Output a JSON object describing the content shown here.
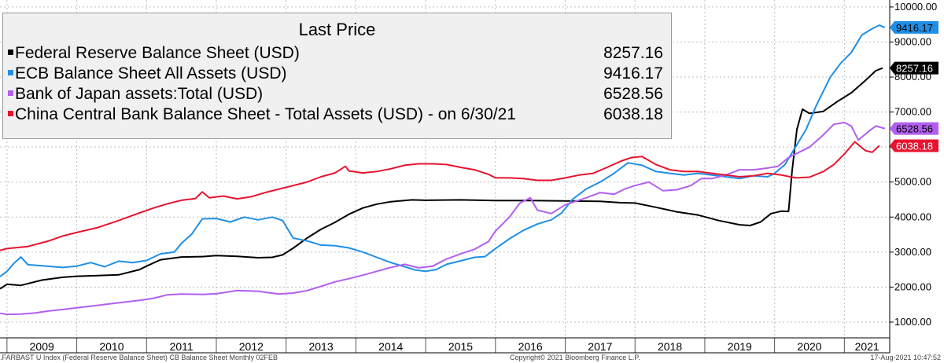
{
  "chart_data": {
    "type": "line",
    "title": "Last Price",
    "x_range": [
      2008.9,
      2021.65
    ],
    "ylim": [
      550,
      10200
    ],
    "y_ticks": [
      1000,
      2000,
      3000,
      4000,
      5000,
      6000,
      7000,
      8000,
      9000,
      10000
    ],
    "y_tick_labels": [
      "1000.00",
      "2000.00",
      "3000.00",
      "4000.00",
      "5000.00",
      "6000.00",
      "7000.00",
      "8000.00",
      "9000.00",
      "10000.00"
    ],
    "x_tick_labels": [
      "2009",
      "2010",
      "2011",
      "2012",
      "2013",
      "2014",
      "2015",
      "2016",
      "2017",
      "2018",
      "2019",
      "2020",
      "2021"
    ],
    "grid": true,
    "legend_position": "top-left",
    "series": [
      {
        "name": "Federal Reserve Balance Sheet (USD)",
        "last_value": "8257.16",
        "color": "#000000",
        "points": [
          [
            2008.9,
            1950
          ],
          [
            2009.0,
            2080
          ],
          [
            2009.2,
            2050
          ],
          [
            2009.5,
            2200
          ],
          [
            2009.8,
            2280
          ],
          [
            2010.0,
            2310
          ],
          [
            2010.3,
            2330
          ],
          [
            2010.6,
            2350
          ],
          [
            2010.9,
            2500
          ],
          [
            2011.0,
            2600
          ],
          [
            2011.2,
            2780
          ],
          [
            2011.5,
            2860
          ],
          [
            2011.8,
            2870
          ],
          [
            2012.0,
            2900
          ],
          [
            2012.3,
            2880
          ],
          [
            2012.6,
            2840
          ],
          [
            2012.8,
            2850
          ],
          [
            2012.95,
            2920
          ],
          [
            2013.1,
            3110
          ],
          [
            2013.3,
            3400
          ],
          [
            2013.5,
            3650
          ],
          [
            2013.7,
            3850
          ],
          [
            2013.9,
            4080
          ],
          [
            2014.1,
            4260
          ],
          [
            2014.3,
            4370
          ],
          [
            2014.5,
            4440
          ],
          [
            2014.8,
            4490
          ],
          [
            2015.0,
            4480
          ],
          [
            2015.5,
            4490
          ],
          [
            2016.0,
            4470
          ],
          [
            2016.5,
            4470
          ],
          [
            2017.0,
            4460
          ],
          [
            2017.5,
            4450
          ],
          [
            2017.8,
            4410
          ],
          [
            2018.0,
            4400
          ],
          [
            2018.3,
            4280
          ],
          [
            2018.6,
            4150
          ],
          [
            2018.9,
            4060
          ],
          [
            2019.2,
            3900
          ],
          [
            2019.5,
            3780
          ],
          [
            2019.65,
            3760
          ],
          [
            2019.8,
            3860
          ],
          [
            2019.95,
            4100
          ],
          [
            2020.1,
            4170
          ],
          [
            2020.2,
            4160
          ],
          [
            2020.25,
            5300
          ],
          [
            2020.32,
            6500
          ],
          [
            2020.4,
            7080
          ],
          [
            2020.5,
            6960
          ],
          [
            2020.7,
            7020
          ],
          [
            2020.9,
            7300
          ],
          [
            2021.1,
            7550
          ],
          [
            2021.3,
            7900
          ],
          [
            2021.45,
            8180
          ],
          [
            2021.55,
            8257.16
          ]
        ]
      },
      {
        "name": "ECB Balance Sheet All Assets (USD)",
        "last_value": "9416.17",
        "color": "#1f8fe6",
        "points": [
          [
            2008.9,
            2300
          ],
          [
            2009.0,
            2450
          ],
          [
            2009.1,
            2680
          ],
          [
            2009.2,
            2860
          ],
          [
            2009.3,
            2640
          ],
          [
            2009.5,
            2610
          ],
          [
            2009.8,
            2560
          ],
          [
            2010.0,
            2600
          ],
          [
            2010.2,
            2700
          ],
          [
            2010.4,
            2580
          ],
          [
            2010.6,
            2740
          ],
          [
            2010.8,
            2700
          ],
          [
            2011.0,
            2760
          ],
          [
            2011.2,
            2950
          ],
          [
            2011.4,
            3000
          ],
          [
            2011.5,
            3250
          ],
          [
            2011.65,
            3520
          ],
          [
            2011.8,
            3950
          ],
          [
            2012.0,
            3960
          ],
          [
            2012.2,
            3860
          ],
          [
            2012.4,
            4000
          ],
          [
            2012.6,
            3920
          ],
          [
            2012.8,
            4000
          ],
          [
            2012.95,
            3900
          ],
          [
            2013.1,
            3400
          ],
          [
            2013.3,
            3320
          ],
          [
            2013.5,
            3200
          ],
          [
            2013.7,
            3180
          ],
          [
            2013.9,
            3120
          ],
          [
            2014.1,
            3000
          ],
          [
            2014.3,
            2850
          ],
          [
            2014.5,
            2700
          ],
          [
            2014.7,
            2580
          ],
          [
            2014.85,
            2490
          ],
          [
            2015.0,
            2450
          ],
          [
            2015.15,
            2500
          ],
          [
            2015.3,
            2650
          ],
          [
            2015.5,
            2750
          ],
          [
            2015.7,
            2850
          ],
          [
            2015.85,
            2870
          ],
          [
            2016.0,
            3100
          ],
          [
            2016.2,
            3380
          ],
          [
            2016.4,
            3620
          ],
          [
            2016.6,
            3800
          ],
          [
            2016.8,
            3920
          ],
          [
            2016.95,
            4120
          ],
          [
            2017.1,
            4500
          ],
          [
            2017.3,
            4800
          ],
          [
            2017.5,
            5000
          ],
          [
            2017.7,
            5250
          ],
          [
            2017.9,
            5550
          ],
          [
            2018.1,
            5480
          ],
          [
            2018.3,
            5300
          ],
          [
            2018.5,
            5250
          ],
          [
            2018.7,
            5200
          ],
          [
            2018.9,
            5250
          ],
          [
            2019.1,
            5200
          ],
          [
            2019.3,
            5150
          ],
          [
            2019.5,
            5100
          ],
          [
            2019.7,
            5180
          ],
          [
            2019.9,
            5150
          ],
          [
            2020.0,
            5250
          ],
          [
            2020.15,
            5500
          ],
          [
            2020.3,
            6000
          ],
          [
            2020.45,
            6500
          ],
          [
            2020.6,
            7200
          ],
          [
            2020.8,
            8000
          ],
          [
            2020.95,
            8400
          ],
          [
            2021.1,
            8700
          ],
          [
            2021.25,
            9200
          ],
          [
            2021.4,
            9380
          ],
          [
            2021.5,
            9480
          ],
          [
            2021.58,
            9416.17
          ]
        ]
      },
      {
        "name": "Bank of Japan assets:Total (USD)",
        "last_value": "6528.56",
        "color": "#b25ff0",
        "points": [
          [
            2008.9,
            1250
          ],
          [
            2009.0,
            1220
          ],
          [
            2009.2,
            1230
          ],
          [
            2009.4,
            1260
          ],
          [
            2009.6,
            1320
          ],
          [
            2009.8,
            1360
          ],
          [
            2010.0,
            1410
          ],
          [
            2010.3,
            1480
          ],
          [
            2010.6,
            1550
          ],
          [
            2010.9,
            1620
          ],
          [
            2011.1,
            1680
          ],
          [
            2011.3,
            1780
          ],
          [
            2011.5,
            1800
          ],
          [
            2011.8,
            1790
          ],
          [
            2012.0,
            1810
          ],
          [
            2012.3,
            1900
          ],
          [
            2012.6,
            1880
          ],
          [
            2012.9,
            1800
          ],
          [
            2013.1,
            1830
          ],
          [
            2013.3,
            1900
          ],
          [
            2013.5,
            2020
          ],
          [
            2013.7,
            2150
          ],
          [
            2013.9,
            2240
          ],
          [
            2014.1,
            2340
          ],
          [
            2014.3,
            2450
          ],
          [
            2014.5,
            2560
          ],
          [
            2014.7,
            2650
          ],
          [
            2014.9,
            2550
          ],
          [
            2015.1,
            2600
          ],
          [
            2015.3,
            2800
          ],
          [
            2015.5,
            2950
          ],
          [
            2015.7,
            3080
          ],
          [
            2015.9,
            3300
          ],
          [
            2016.0,
            3600
          ],
          [
            2016.2,
            4000
          ],
          [
            2016.35,
            4400
          ],
          [
            2016.5,
            4550
          ],
          [
            2016.6,
            4200
          ],
          [
            2016.8,
            4100
          ],
          [
            2017.0,
            4350
          ],
          [
            2017.3,
            4550
          ],
          [
            2017.5,
            4700
          ],
          [
            2017.7,
            4650
          ],
          [
            2017.85,
            4800
          ],
          [
            2018.0,
            4900
          ],
          [
            2018.2,
            5000
          ],
          [
            2018.4,
            4750
          ],
          [
            2018.6,
            4780
          ],
          [
            2018.8,
            4900
          ],
          [
            2018.95,
            5100
          ],
          [
            2019.1,
            5100
          ],
          [
            2019.3,
            5200
          ],
          [
            2019.5,
            5350
          ],
          [
            2019.7,
            5350
          ],
          [
            2019.9,
            5400
          ],
          [
            2020.05,
            5450
          ],
          [
            2020.2,
            5700
          ],
          [
            2020.35,
            5850
          ],
          [
            2020.5,
            6000
          ],
          [
            2020.7,
            6350
          ],
          [
            2020.85,
            6650
          ],
          [
            2021.0,
            6700
          ],
          [
            2021.1,
            6600
          ],
          [
            2021.2,
            6200
          ],
          [
            2021.35,
            6450
          ],
          [
            2021.45,
            6600
          ],
          [
            2021.58,
            6528.56
          ]
        ]
      },
      {
        "name": "China Central Bank Balance Sheet - Total Assets (USD) -  on 6/30/21",
        "last_value": "6038.18",
        "color": "#e8132e",
        "points": [
          [
            2008.9,
            3050
          ],
          [
            2009.0,
            3100
          ],
          [
            2009.3,
            3160
          ],
          [
            2009.6,
            3320
          ],
          [
            2009.8,
            3460
          ],
          [
            2010.0,
            3560
          ],
          [
            2010.3,
            3700
          ],
          [
            2010.6,
            3900
          ],
          [
            2010.9,
            4120
          ],
          [
            2011.1,
            4260
          ],
          [
            2011.3,
            4380
          ],
          [
            2011.5,
            4480
          ],
          [
            2011.7,
            4530
          ],
          [
            2011.8,
            4720
          ],
          [
            2011.9,
            4550
          ],
          [
            2012.1,
            4600
          ],
          [
            2012.3,
            4520
          ],
          [
            2012.5,
            4580
          ],
          [
            2012.7,
            4700
          ],
          [
            2012.9,
            4800
          ],
          [
            2013.1,
            4900
          ],
          [
            2013.3,
            5000
          ],
          [
            2013.5,
            5150
          ],
          [
            2013.7,
            5260
          ],
          [
            2013.85,
            5450
          ],
          [
            2013.9,
            5320
          ],
          [
            2014.1,
            5260
          ],
          [
            2014.3,
            5300
          ],
          [
            2014.5,
            5380
          ],
          [
            2014.7,
            5480
          ],
          [
            2014.9,
            5520
          ],
          [
            2015.1,
            5520
          ],
          [
            2015.3,
            5500
          ],
          [
            2015.5,
            5420
          ],
          [
            2015.7,
            5350
          ],
          [
            2015.9,
            5220
          ],
          [
            2016.0,
            5120
          ],
          [
            2016.2,
            5120
          ],
          [
            2016.4,
            5100
          ],
          [
            2016.6,
            5050
          ],
          [
            2016.8,
            5050
          ],
          [
            2017.0,
            5120
          ],
          [
            2017.2,
            5200
          ],
          [
            2017.4,
            5250
          ],
          [
            2017.6,
            5420
          ],
          [
            2017.8,
            5600
          ],
          [
            2017.95,
            5700
          ],
          [
            2018.1,
            5730
          ],
          [
            2018.3,
            5500
          ],
          [
            2018.5,
            5350
          ],
          [
            2018.7,
            5300
          ],
          [
            2018.9,
            5300
          ],
          [
            2019.1,
            5250
          ],
          [
            2019.3,
            5200
          ],
          [
            2019.5,
            5150
          ],
          [
            2019.7,
            5180
          ],
          [
            2019.9,
            5250
          ],
          [
            2020.1,
            5200
          ],
          [
            2020.3,
            5120
          ],
          [
            2020.5,
            5140
          ],
          [
            2020.7,
            5300
          ],
          [
            2020.85,
            5500
          ],
          [
            2021.0,
            5800
          ],
          [
            2021.15,
            6150
          ],
          [
            2021.3,
            5900
          ],
          [
            2021.4,
            5850
          ],
          [
            2021.5,
            6038.18
          ]
        ]
      }
    ]
  },
  "footer": {
    "left": ".FARBAST U Index (Federal Reserve Balance Sheet) CB Balance Sheet  Monthly 02FEB",
    "center": "Copyright© 2021 Bloomberg Finance L.P.",
    "right": "17-Aug-2021 10:47:52"
  }
}
